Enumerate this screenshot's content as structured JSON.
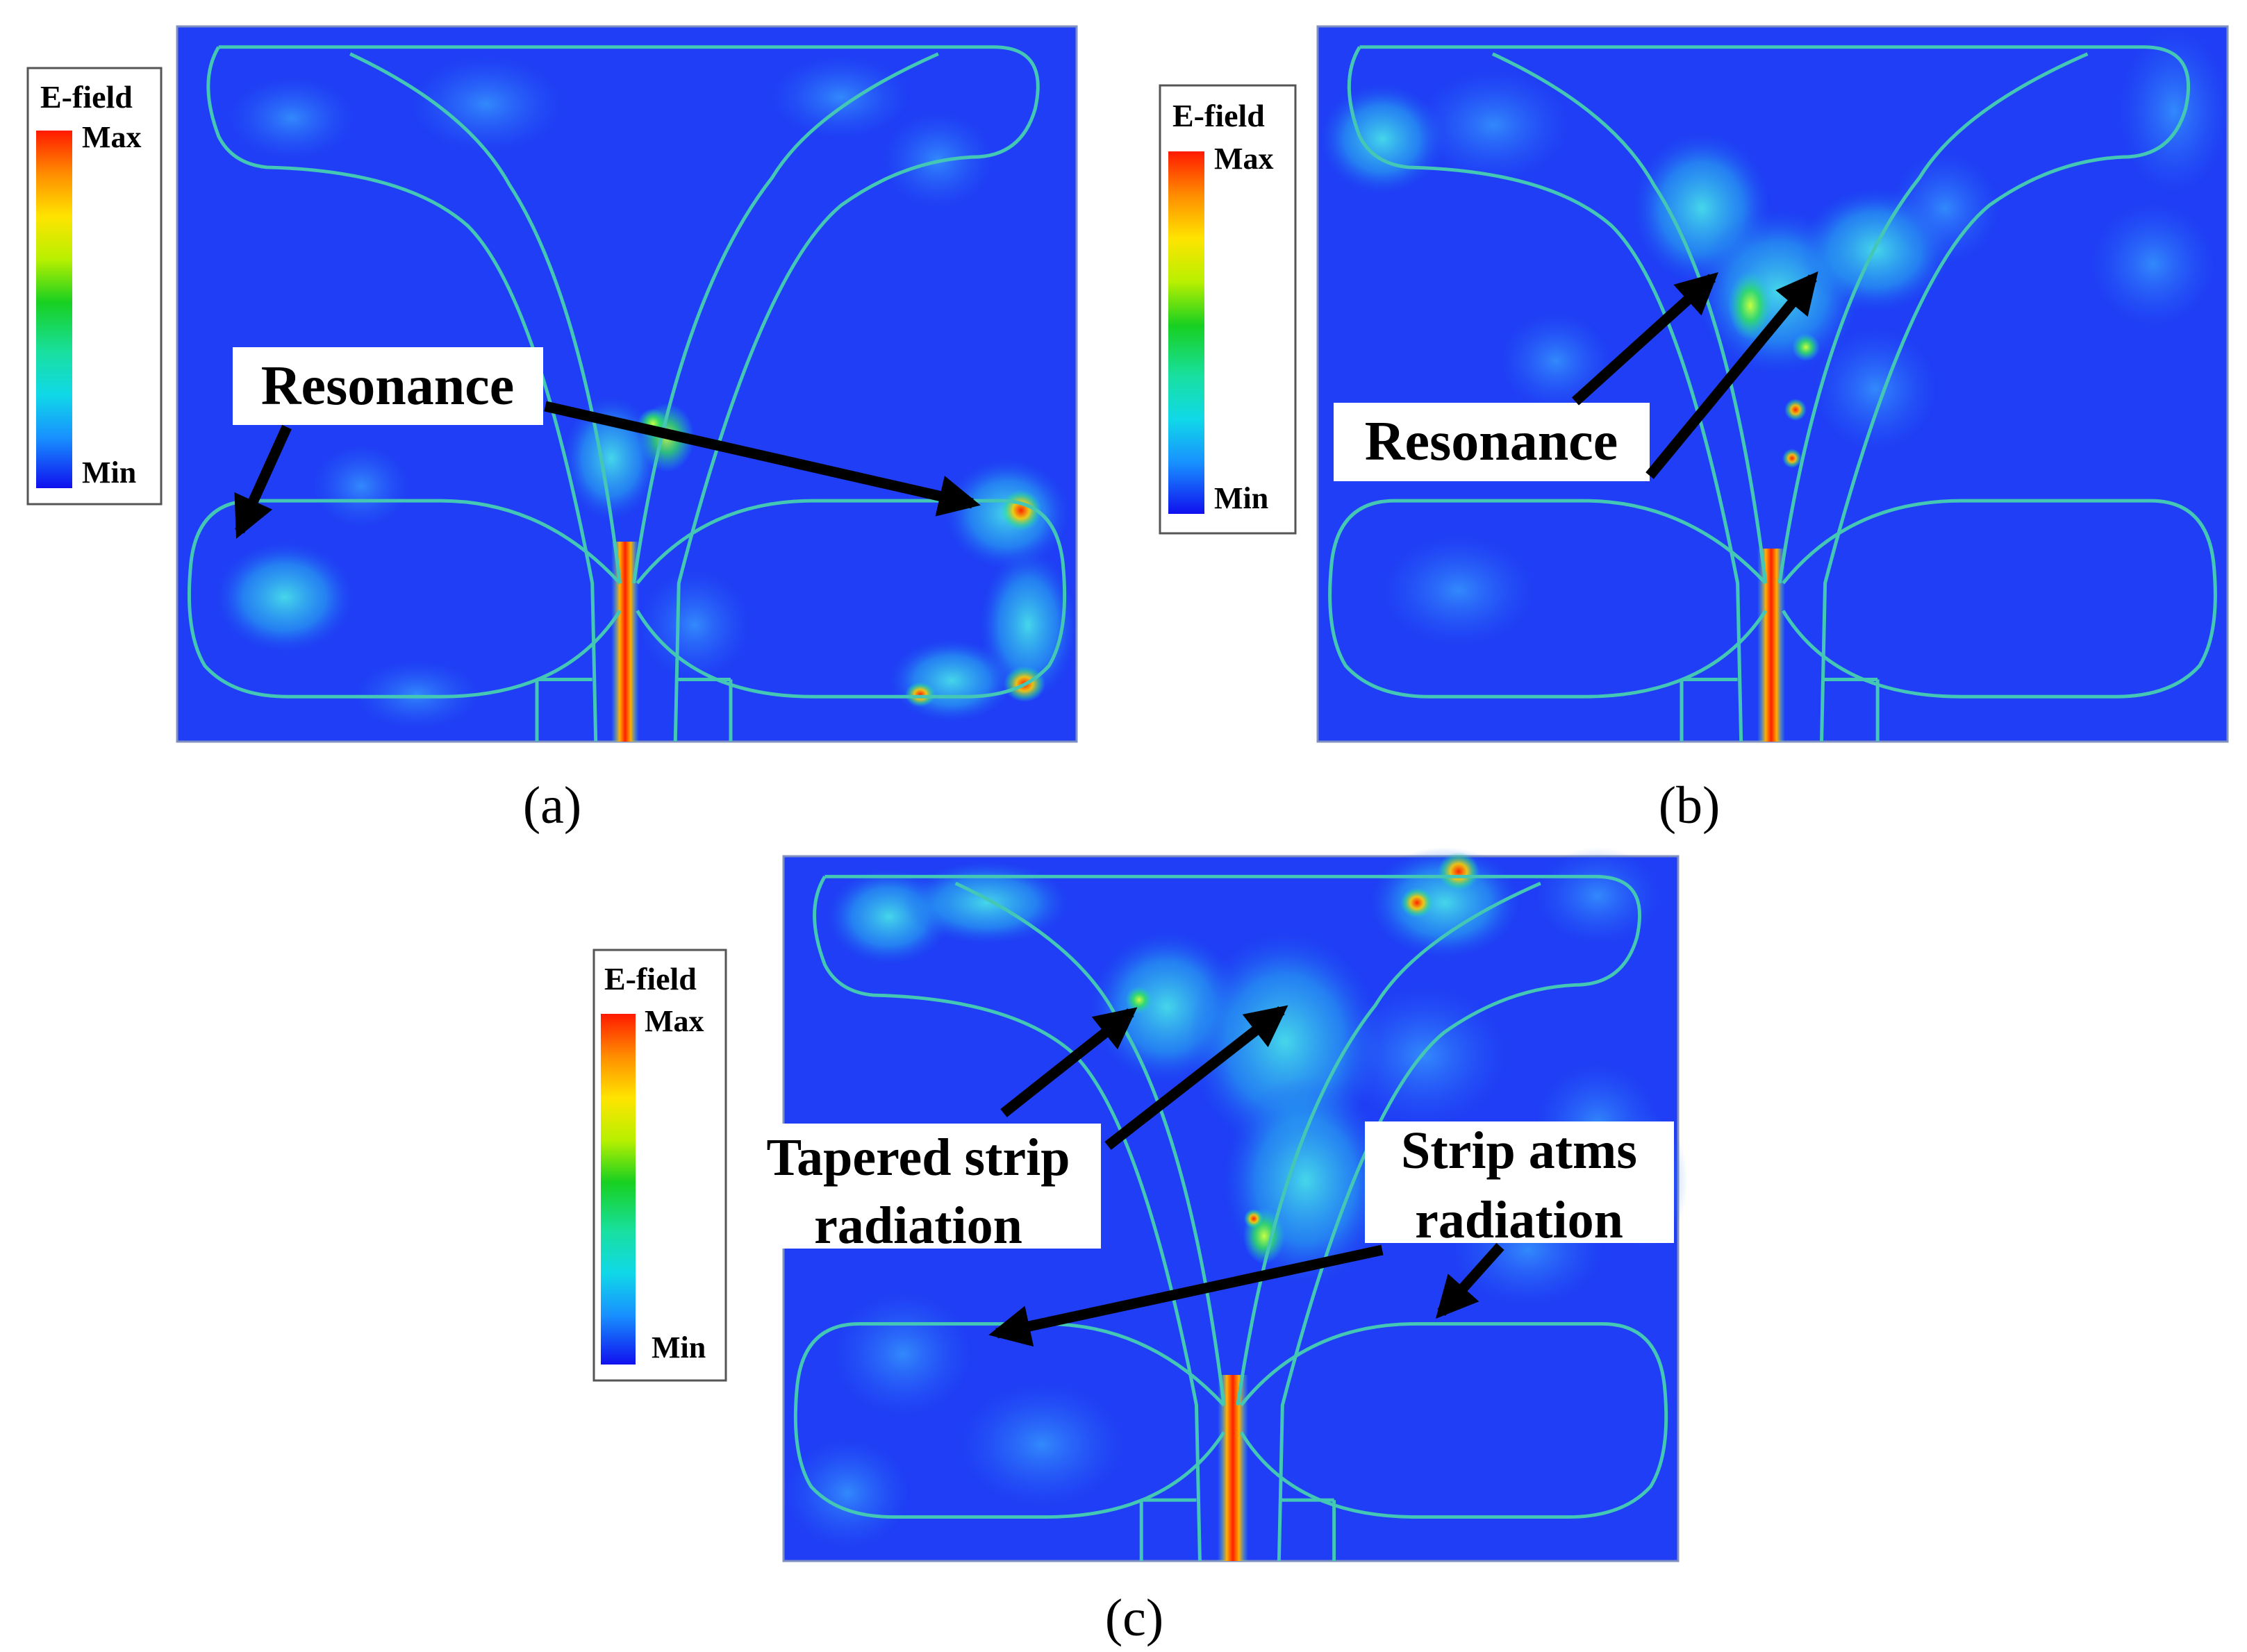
{
  "colors": {
    "field_base": "#1f3ef5",
    "outline": "#44c7b4",
    "arrow": "#000000"
  },
  "panels": [
    {
      "caption": "(a)",
      "legend": {
        "title": "E-field",
        "max_label": "Max",
        "min_label": "Min"
      },
      "annotations": [
        {
          "text": "Resonance"
        }
      ]
    },
    {
      "caption": "(b)",
      "legend": {
        "title": "E-field",
        "max_label": "Max",
        "min_label": "Min"
      },
      "annotations": [
        {
          "text": "Resonance"
        }
      ]
    },
    {
      "caption": "(c)",
      "legend": {
        "title": "E-field",
        "max_label": "Max",
        "min_label": "Min"
      },
      "annotations": [
        {
          "lines": [
            "Tapered strip",
            "radiation"
          ]
        },
        {
          "lines": [
            "Strip atms",
            "radiation"
          ]
        }
      ]
    }
  ]
}
